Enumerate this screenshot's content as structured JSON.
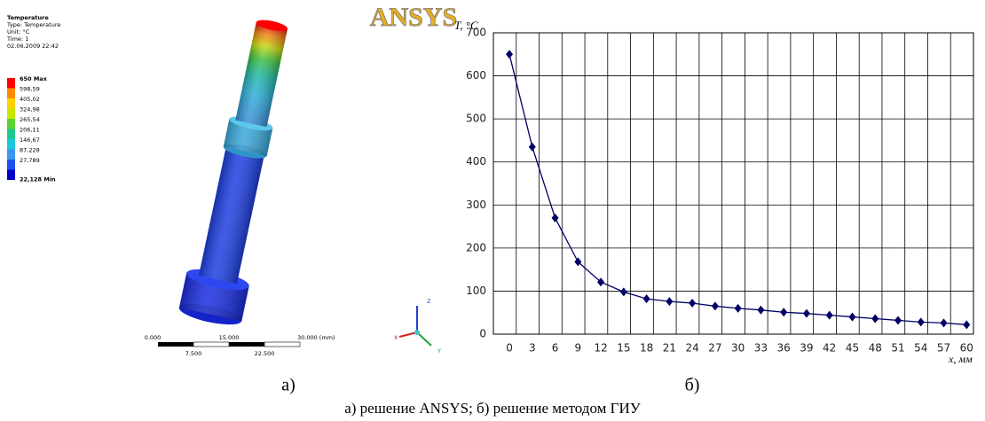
{
  "ansys": {
    "logo": "ANSYS",
    "header": [
      "Temperature",
      "Type: Temperature",
      "Unit: °C",
      "Time: 1",
      "02.06.2009 22:42"
    ],
    "legend": [
      {
        "label": "650 Max",
        "color": "#ff0000"
      },
      {
        "label": "598,59",
        "color": "#ff8c00"
      },
      {
        "label": "405,02",
        "color": "#ffd200"
      },
      {
        "label": "324,98",
        "color": "#c8e600"
      },
      {
        "label": "265,54",
        "color": "#5ad232"
      },
      {
        "label": "206,11",
        "color": "#1ec88c"
      },
      {
        "label": "146,67",
        "color": "#1ec8dc"
      },
      {
        "label": "87,228",
        "color": "#3c96f0"
      },
      {
        "label": "27,789",
        "color": "#1e50f0"
      },
      {
        "label": "22,128 Min",
        "color": "#0000c8"
      }
    ],
    "scale_top": [
      "0.000",
      "15.000",
      "30.000 (mm)"
    ],
    "scale_bottom": [
      "7.500",
      "22.500"
    ],
    "triad": [
      "X",
      "Y",
      "Z"
    ]
  },
  "chart_data": {
    "type": "line",
    "ylabel": "T, °C",
    "xlabel": "x, мм",
    "categories": [
      "0",
      "3",
      "6",
      "9",
      "12",
      "15",
      "18",
      "21",
      "24",
      "27",
      "30",
      "33",
      "36",
      "39",
      "42",
      "45",
      "48",
      "51",
      "54",
      "57",
      "60"
    ],
    "values": [
      650,
      435,
      270,
      168,
      121,
      98,
      82,
      76,
      72,
      65,
      60,
      56,
      51,
      48,
      44,
      40,
      36,
      32,
      28,
      26,
      22
    ],
    "color": "#000066",
    "ylim": [
      0,
      700
    ],
    "yticks": [
      0,
      100,
      200,
      300,
      400,
      500,
      600,
      700
    ],
    "grid": true
  },
  "captions": {
    "left": "а)",
    "right": "б)",
    "main": "а) решение ANSYS; б) решение методом ГИУ"
  }
}
